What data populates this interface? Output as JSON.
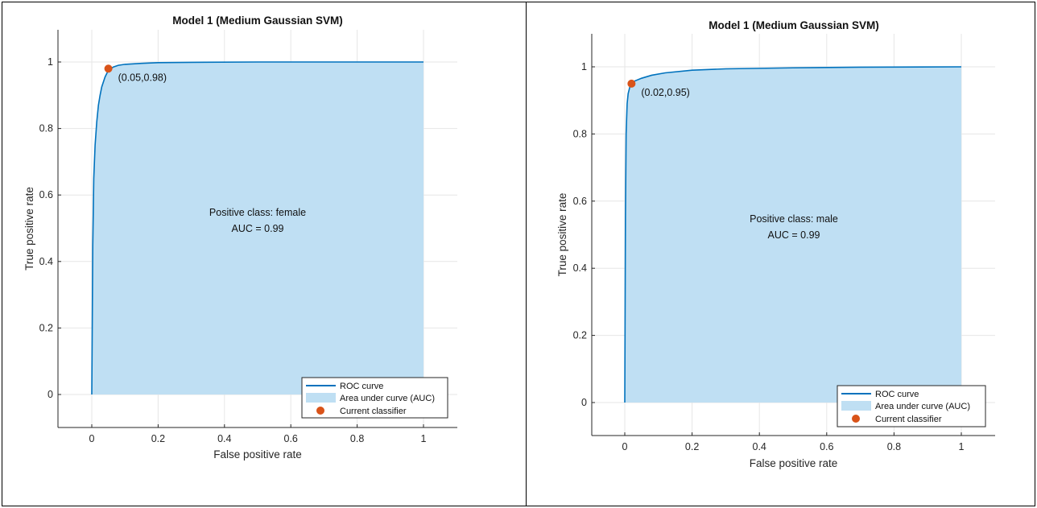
{
  "charts": [
    {
      "title": "Model 1 (Medium Gaussian SVM)",
      "xlabel": "False positive rate",
      "ylabel": "True positive rate",
      "annotation_lines": [
        "Positive class: female",
        "AUC = 0.99"
      ],
      "point_label": "(0.05,0.98)",
      "legend": [
        "ROC curve",
        "Area under curve (AUC)",
        "Current classifier"
      ]
    },
    {
      "title": "Model 1 (Medium Gaussian SVM)",
      "xlabel": "False positive rate",
      "ylabel": "True positive rate",
      "annotation_lines": [
        "Positive class: male",
        "AUC = 0.99"
      ],
      "point_label": "(0.02,0.95)",
      "legend": [
        "ROC curve",
        "Area under curve (AUC)",
        "Current classifier"
      ]
    }
  ],
  "colors": {
    "curve": "#0072BD",
    "area": "#BFDFF3",
    "point": "#D95319",
    "grid": "#E6E6E6",
    "axis": "#262626"
  },
  "chart_data": [
    {
      "type": "area",
      "title": "Model 1 (Medium Gaussian SVM)",
      "xlabel": "False positive rate",
      "ylabel": "True positive rate",
      "xlim": [
        -0.1,
        1.1
      ],
      "ylim": [
        -0.1,
        1.1
      ],
      "xticks": [
        0,
        0.2,
        0.4,
        0.6,
        0.8,
        1
      ],
      "yticks": [
        0,
        0.2,
        0.4,
        0.6,
        0.8,
        1
      ],
      "grid": true,
      "legend_position": "bottom-right",
      "series": [
        {
          "name": "ROC curve",
          "x": [
            0,
            0.003,
            0.006,
            0.01,
            0.015,
            0.02,
            0.025,
            0.03,
            0.04,
            0.05,
            0.065,
            0.08,
            0.1,
            0.15,
            0.2,
            0.3,
            0.5,
            0.7,
            1.0
          ],
          "y": [
            0,
            0.45,
            0.65,
            0.75,
            0.82,
            0.87,
            0.9,
            0.925,
            0.955,
            0.975,
            0.985,
            0.99,
            0.993,
            0.996,
            0.998,
            0.999,
            1.0,
            1.0,
            1.0
          ]
        }
      ],
      "current_classifier": {
        "x": 0.05,
        "y": 0.98
      },
      "auc": 0.99,
      "positive_class": "female"
    },
    {
      "type": "area",
      "title": "Model 1 (Medium Gaussian SVM)",
      "xlabel": "False positive rate",
      "ylabel": "True positive rate",
      "xlim": [
        -0.1,
        1.1
      ],
      "ylim": [
        -0.1,
        1.1
      ],
      "xticks": [
        0,
        0.2,
        0.4,
        0.6,
        0.8,
        1
      ],
      "yticks": [
        0,
        0.2,
        0.4,
        0.6,
        0.8,
        1
      ],
      "grid": true,
      "legend_position": "bottom-right",
      "series": [
        {
          "name": "ROC curve",
          "x": [
            0,
            0.002,
            0.004,
            0.007,
            0.01,
            0.015,
            0.02,
            0.03,
            0.05,
            0.08,
            0.12,
            0.2,
            0.3,
            0.5,
            0.7,
            1.0
          ],
          "y": [
            0,
            0.55,
            0.8,
            0.89,
            0.92,
            0.94,
            0.95,
            0.958,
            0.966,
            0.975,
            0.982,
            0.99,
            0.994,
            0.997,
            0.999,
            1.0
          ]
        }
      ],
      "current_classifier": {
        "x": 0.02,
        "y": 0.95
      },
      "auc": 0.99,
      "positive_class": "male"
    }
  ]
}
